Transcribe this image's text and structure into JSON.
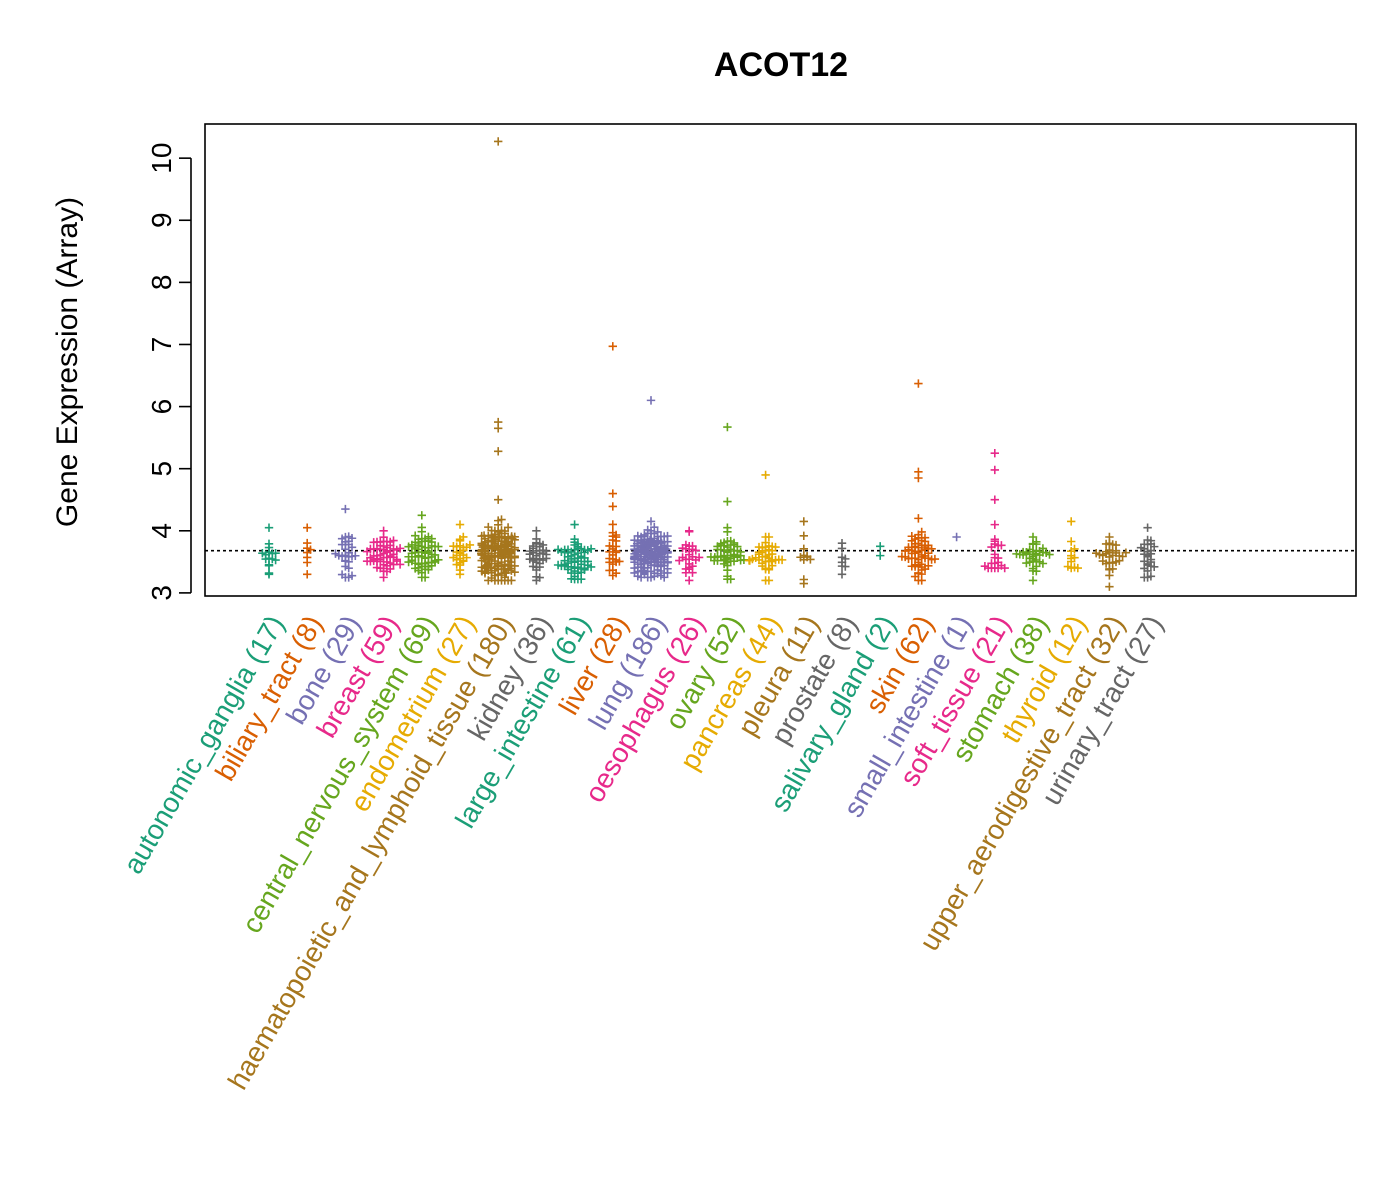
{
  "chart_data": {
    "type": "beeswarm",
    "title": "ACOT12",
    "xlabel": "",
    "ylabel": "Gene Expression (Array)",
    "ylim": [
      2.95,
      10.55
    ],
    "yticks": [
      3,
      4,
      5,
      6,
      7,
      8,
      9,
      10
    ],
    "reference_line": 3.68,
    "groups": [
      {
        "name": "autonomic_ganglia",
        "count_label": "(17)",
        "color": "#1B9E77",
        "n": 17,
        "min": 3.3,
        "max": 4.05,
        "median": 3.6,
        "outliers": []
      },
      {
        "name": "biliary_tract",
        "count_label": "(8)",
        "color": "#D95F02",
        "n": 8,
        "min": 3.3,
        "max": 4.05,
        "median": 3.68,
        "outliers": []
      },
      {
        "name": "bone",
        "count_label": "(29)",
        "color": "#7570B3",
        "n": 29,
        "min": 3.25,
        "max": 4.35,
        "median": 3.65,
        "outliers": []
      },
      {
        "name": "breast",
        "count_label": "(59)",
        "color": "#E7298A",
        "n": 59,
        "min": 3.25,
        "max": 4.0,
        "median": 3.62,
        "outliers": []
      },
      {
        "name": "central_nervous_system",
        "count_label": "(69)",
        "color": "#66A61E",
        "n": 69,
        "min": 3.25,
        "max": 4.25,
        "median": 3.6,
        "outliers": []
      },
      {
        "name": "endometrium",
        "count_label": "(27)",
        "color": "#E6AB02",
        "n": 27,
        "min": 3.3,
        "max": 4.1,
        "median": 3.62,
        "outliers": []
      },
      {
        "name": "haematopoietic_and_lymphoid_tissue",
        "count_label": "(180)",
        "color": "#A6761D",
        "n": 180,
        "min": 3.2,
        "max": 4.5,
        "median": 3.65,
        "outliers": [
          10.27,
          5.75,
          5.65,
          5.28
        ]
      },
      {
        "name": "kidney",
        "count_label": "(36)",
        "color": "#666666",
        "n": 36,
        "min": 3.2,
        "max": 4.0,
        "median": 3.6,
        "outliers": []
      },
      {
        "name": "large_intestine",
        "count_label": "(61)",
        "color": "#1B9E77",
        "n": 61,
        "min": 3.22,
        "max": 4.1,
        "median": 3.55,
        "outliers": []
      },
      {
        "name": "liver",
        "count_label": "(28)",
        "color": "#D95F02",
        "n": 28,
        "min": 3.28,
        "max": 4.6,
        "median": 3.62,
        "outliers": [
          6.97
        ]
      },
      {
        "name": "lung",
        "count_label": "(186)",
        "color": "#7570B3",
        "n": 186,
        "min": 3.25,
        "max": 4.15,
        "median": 3.62,
        "outliers": [
          6.1
        ]
      },
      {
        "name": "oesophagus",
        "count_label": "(26)",
        "color": "#E7298A",
        "n": 26,
        "min": 3.2,
        "max": 4.0,
        "median": 3.55,
        "outliers": []
      },
      {
        "name": "ovary",
        "count_label": "(52)",
        "color": "#66A61E",
        "n": 52,
        "min": 3.22,
        "max": 4.05,
        "median": 3.6,
        "outliers": [
          5.67,
          4.47
        ]
      },
      {
        "name": "pancreas",
        "count_label": "(44)",
        "color": "#E6AB02",
        "n": 44,
        "min": 3.2,
        "max": 3.9,
        "median": 3.55,
        "outliers": [
          4.9
        ]
      },
      {
        "name": "pleura",
        "count_label": "(11)",
        "color": "#A6761D",
        "n": 11,
        "min": 3.15,
        "max": 4.15,
        "median": 3.65,
        "outliers": []
      },
      {
        "name": "prostate",
        "count_label": "(8)",
        "color": "#666666",
        "n": 8,
        "min": 3.3,
        "max": 3.8,
        "median": 3.5,
        "outliers": []
      },
      {
        "name": "salivary_gland",
        "count_label": "(2)",
        "color": "#1B9E77",
        "n": 2,
        "min": 3.6,
        "max": 3.75,
        "median": 3.68,
        "outliers": []
      },
      {
        "name": "skin",
        "count_label": "(62)",
        "color": "#D95F02",
        "n": 62,
        "min": 3.2,
        "max": 4.2,
        "median": 3.65,
        "outliers": [
          6.37,
          4.95,
          4.85
        ]
      },
      {
        "name": "small_intestine",
        "count_label": "(1)",
        "color": "#7570B3",
        "n": 1,
        "min": 3.9,
        "max": 3.9,
        "median": 3.9,
        "outliers": []
      },
      {
        "name": "soft_tissue",
        "count_label": "(21)",
        "color": "#E7298A",
        "n": 21,
        "min": 3.4,
        "max": 4.5,
        "median": 3.6,
        "outliers": [
          5.25,
          4.98
        ]
      },
      {
        "name": "stomach",
        "count_label": "(38)",
        "color": "#66A61E",
        "n": 38,
        "min": 3.2,
        "max": 3.9,
        "median": 3.58,
        "outliers": []
      },
      {
        "name": "thyroid",
        "count_label": "(12)",
        "color": "#E6AB02",
        "n": 12,
        "min": 3.4,
        "max": 4.15,
        "median": 3.65,
        "outliers": []
      },
      {
        "name": "upper_aerodigestive_tract",
        "count_label": "(32)",
        "color": "#A6761D",
        "n": 32,
        "min": 3.1,
        "max": 3.9,
        "median": 3.58,
        "outliers": []
      },
      {
        "name": "urinary_tract",
        "count_label": "(27)",
        "color": "#666666",
        "n": 27,
        "min": 3.25,
        "max": 4.05,
        "median": 3.62,
        "outliers": []
      }
    ]
  }
}
